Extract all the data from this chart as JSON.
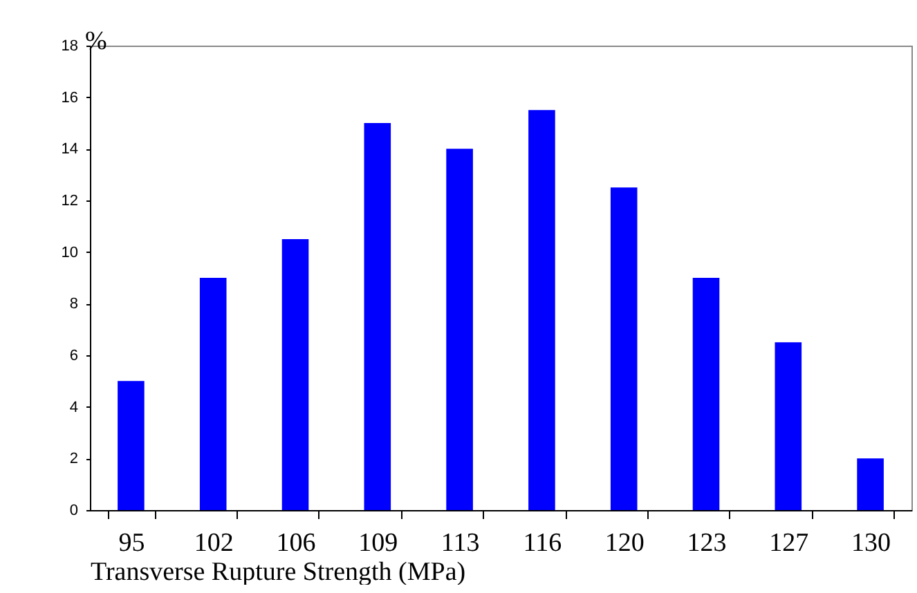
{
  "chart_data": {
    "type": "bar",
    "xlabel": "Transverse Rupture Strength (MPa)",
    "ylabel": "%",
    "categories": [
      "95",
      "102",
      "106",
      "109",
      "113",
      "116",
      "120",
      "123",
      "127",
      "130"
    ],
    "values": [
      5,
      9,
      10.5,
      15,
      14,
      15.5,
      12.5,
      9,
      6.5,
      2
    ],
    "color": "#0000ff",
    "ylim": [
      0,
      18
    ],
    "yticks": [
      0,
      2,
      4,
      6,
      8,
      10,
      12,
      14,
      16,
      18
    ],
    "grid": false
  }
}
